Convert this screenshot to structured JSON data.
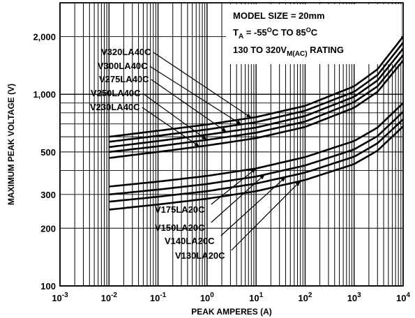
{
  "chart_data": {
    "type": "line",
    "xscale": "log",
    "yscale": "log",
    "xlim": [
      0.001,
      10000
    ],
    "ylim": [
      100,
      3000
    ],
    "xlabel": "PEAK AMPERES (A)",
    "ylabel": "MAXIMUM PEAK VOLTAGE (V)",
    "x_ticks": [
      {
        "base": "10",
        "exp": "-3"
      },
      {
        "base": "10",
        "exp": "-2"
      },
      {
        "base": "10",
        "exp": "-1"
      },
      {
        "base": "10",
        "exp": "0"
      },
      {
        "base": "10",
        "exp": "1"
      },
      {
        "base": "10",
        "exp": "2"
      },
      {
        "base": "10",
        "exp": "3"
      },
      {
        "base": "10",
        "exp": "4"
      }
    ],
    "x_tick_values": [
      0.001,
      0.01,
      0.1,
      1,
      10,
      100,
      1000,
      10000
    ],
    "y_ticks": [
      "100",
      "200",
      "300",
      "500",
      "1,000",
      "2,000"
    ],
    "y_tick_values": [
      100,
      200,
      300,
      500,
      1000,
      2000
    ],
    "grid": true,
    "annotation": {
      "line1": "MODEL SIZE = 20mm",
      "line2_prefix": "T",
      "line2_sub": "A",
      "line2_mid": " = -55",
      "line2_sup1": "O",
      "line2_mid2": "C TO 85",
      "line2_sup2": "O",
      "line2_end": "C",
      "line3_prefix": "130 TO 320V",
      "line3_sub": "M(AC)",
      "line3_end": " RATING"
    },
    "series": [
      {
        "name": "V320LA40C",
        "x": [
          0.01,
          0.1,
          1,
          10,
          100,
          1000,
          3000,
          10000
        ],
        "y": [
          600,
          645,
          695,
          760,
          870,
          1100,
          1350,
          2000
        ]
      },
      {
        "name": "V300LA40C",
        "x": [
          0.01,
          0.1,
          1,
          10,
          100,
          1000,
          3000,
          10000
        ],
        "y": [
          565,
          607,
          655,
          715,
          820,
          1030,
          1260,
          1860
        ]
      },
      {
        "name": "V275LA40C",
        "x": [
          0.01,
          0.1,
          1,
          10,
          100,
          1000,
          3000,
          10000
        ],
        "y": [
          530,
          570,
          615,
          670,
          770,
          970,
          1180,
          1730
        ]
      },
      {
        "name": "V250LA40C",
        "x": [
          0.01,
          0.1,
          1,
          10,
          100,
          1000,
          3000,
          10000
        ],
        "y": [
          500,
          535,
          578,
          630,
          720,
          910,
          1100,
          1600
        ]
      },
      {
        "name": "V230LA40C",
        "x": [
          0.01,
          0.1,
          1,
          10,
          100,
          1000,
          3000,
          10000
        ],
        "y": [
          465,
          500,
          540,
          590,
          675,
          850,
          1030,
          1500
        ]
      },
      {
        "name": "V175LA20C",
        "x": [
          0.01,
          0.1,
          1,
          10,
          100,
          1000,
          3000,
          10000
        ],
        "y": [
          330,
          350,
          375,
          410,
          470,
          570,
          670,
          900
        ]
      },
      {
        "name": "V150LA20C",
        "x": [
          0.01,
          0.1,
          1,
          10,
          100,
          1000,
          3000,
          10000
        ],
        "y": [
          300,
          318,
          340,
          372,
          425,
          515,
          605,
          810
        ]
      },
      {
        "name": "V140LA20C",
        "x": [
          0.01,
          0.1,
          1,
          10,
          100,
          1000,
          3000,
          10000
        ],
        "y": [
          275,
          292,
          312,
          342,
          390,
          472,
          555,
          740
        ]
      },
      {
        "name": "V130LA20C",
        "x": [
          0.01,
          0.1,
          1,
          10,
          100,
          1000,
          3000,
          10000
        ],
        "y": [
          250,
          266,
          285,
          312,
          357,
          432,
          508,
          680
        ]
      }
    ],
    "label_targets": [
      {
        "name": "V320LA40C",
        "x": 8
      },
      {
        "name": "V300LA40C",
        "x": 5
      },
      {
        "name": "V275LA40C",
        "x": 2.5
      },
      {
        "name": "V250LA40C",
        "x": 1
      },
      {
        "name": "V230LA40C",
        "x": 0.7
      },
      {
        "name": "V175LA20C",
        "x": 10
      },
      {
        "name": "V150LA20C",
        "x": 15
      },
      {
        "name": "V140LA20C",
        "x": 40
      },
      {
        "name": "V130LA20C",
        "x": 80
      }
    ]
  }
}
